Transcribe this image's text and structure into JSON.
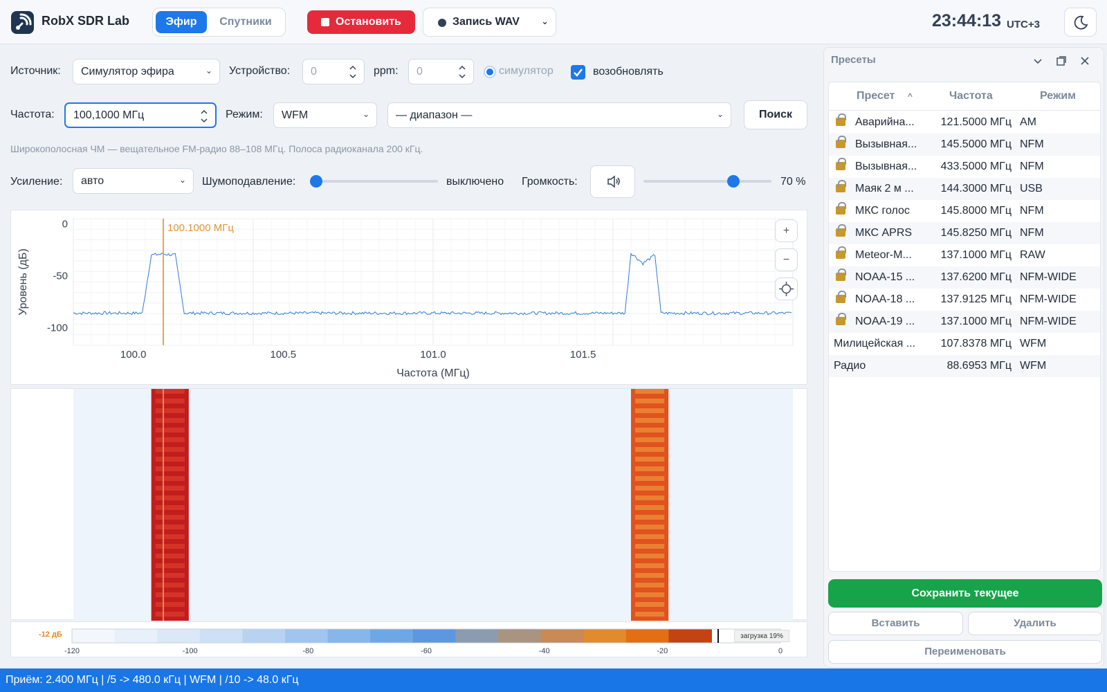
{
  "app": {
    "title": "RobX SDR Lab"
  },
  "tabs": [
    {
      "label": "Эфир",
      "active": true
    },
    {
      "label": "Спутники",
      "active": false
    }
  ],
  "toolbar": {
    "stop_label": "Остановить",
    "record_label": "Запись WAV",
    "time": "23:44:13",
    "timezone": "UTC+3"
  },
  "source": {
    "label": "Источник:",
    "value": "Симулятор эфира",
    "device_label": "Устройство:",
    "device_value": "0",
    "ppm_label": "ppm:",
    "ppm_value": "0",
    "sim_label": "симулятор",
    "resume_label": "возобновлять",
    "resume_checked": true
  },
  "freq": {
    "label": "Частота:",
    "value": "100,1000 МГц",
    "mode_label": "Режим:",
    "mode_value": "WFM",
    "range_value": "— диапазон —",
    "search_label": "Поиск"
  },
  "hint": "Широкополосная ЧМ — вещательное FM-радио 88–108 МГц. Полоса радиоканала 200 кГц.",
  "gain": {
    "label": "Усиление:",
    "value": "авто",
    "nr_label": "Шумоподавление:",
    "nr_value": "выключено",
    "vol_label": "Громкость:",
    "vol_value": "70 %",
    "vol_level": 0.7
  },
  "chart_data": {
    "type": "line",
    "xlabel": "Частота (МГц)",
    "ylabel": "Уровень (дБ)",
    "xlim": [
      99.8,
      102.2
    ],
    "ylim": [
      -117,
      5
    ],
    "xticks": [
      "100.0",
      "100.5",
      "101.0",
      "101.5"
    ],
    "yticks": [
      "0",
      "-50",
      "-100"
    ],
    "marker": {
      "x": 100.1,
      "label": "100.1000 МГц"
    },
    "series": [
      {
        "x": [
          99.8,
          100.0,
          100.03,
          100.06,
          100.1,
          100.14,
          100.17,
          100.2,
          101.0,
          101.6,
          101.64,
          101.66,
          101.7,
          101.74,
          101.76,
          101.8,
          102.2
        ],
        "values": [
          -86,
          -86,
          -86,
          -30,
          -29,
          -30,
          -86,
          -86,
          -86,
          -86,
          -86,
          -28,
          -38,
          -30,
          -86,
          -86,
          -86
        ]
      }
    ]
  },
  "waterfall": {
    "level_label": "-12 дБ",
    "load_label": "загрузка 19%",
    "scale": [
      "-120",
      "-100",
      "-80",
      "-60",
      "-40",
      "-20",
      "0"
    ]
  },
  "presets": {
    "title": "Пресеты",
    "columns": [
      "Пресет",
      "Частота",
      "Режим"
    ],
    "rows": [
      {
        "name": "Аварийна...",
        "freq": "121.5000 МГц",
        "mode": "AM",
        "locked": true
      },
      {
        "name": "Вызывная...",
        "freq": "145.5000 МГц",
        "mode": "NFM",
        "locked": true
      },
      {
        "name": "Вызывная...",
        "freq": "433.5000 МГц",
        "mode": "NFM",
        "locked": true
      },
      {
        "name": "Маяк 2 м ...",
        "freq": "144.3000 МГц",
        "mode": "USB",
        "locked": true
      },
      {
        "name": "МКС голос",
        "freq": "145.8000 МГц",
        "mode": "NFM",
        "locked": true
      },
      {
        "name": "МКС APRS",
        "freq": "145.8250 МГц",
        "mode": "NFM",
        "locked": true
      },
      {
        "name": "Meteor-M...",
        "freq": "137.1000 МГц",
        "mode": "RAW",
        "locked": true
      },
      {
        "name": "NOAA-15 ...",
        "freq": "137.6200 МГц",
        "mode": "NFM-WIDE",
        "locked": true
      },
      {
        "name": "NOAA-18 ...",
        "freq": "137.9125 МГц",
        "mode": "NFM-WIDE",
        "locked": true
      },
      {
        "name": "NOAA-19 ...",
        "freq": "137.1000 МГц",
        "mode": "NFM-WIDE",
        "locked": true
      },
      {
        "name": "Милицейская ...",
        "freq": "107.8378 МГц",
        "mode": "WFM",
        "locked": false
      },
      {
        "name": "Радио",
        "freq": "88.6953 МГц",
        "mode": "WFM",
        "locked": false
      }
    ],
    "save_label": "Сохранить текущее",
    "insert_label": "Вставить",
    "delete_label": "Удалить",
    "rename_label": "Переименовать"
  },
  "status": "Приём: 2.400 МГц | /5 -> 480.0 кГц | WFM | /10 -> 48.0 кГц"
}
